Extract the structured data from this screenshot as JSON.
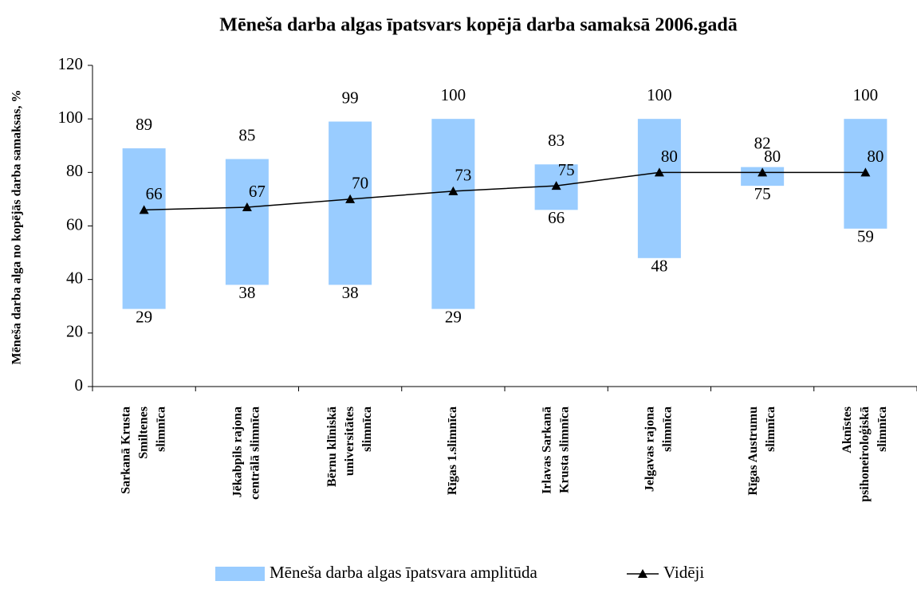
{
  "chart_data": {
    "type": "range-bar-line",
    "title": "Mēneša darba algas īpatsvars kopējā darba samaksā 2006.gadā",
    "y_label": "Mēneša darba alga no kopējās darba samaksas, %",
    "categories": [
      [
        "Sarkanā Krusta",
        "Smiltenes",
        "slimnīca"
      ],
      [
        "Jēkabpils rajona",
        "centrālā slimnīca"
      ],
      [
        "Bērnu klīniskā",
        "universitātes",
        "slimnīca"
      ],
      [
        "Rīgas 1.slimnīca"
      ],
      [
        "Irlavas Sarkanā",
        "Krusta slimnīca"
      ],
      [
        "Jelgavas rajona",
        "slimnīca"
      ],
      [
        "Rīgas Austrumu",
        "slimnīca"
      ],
      [
        "Aknīstes",
        "psihoneiroloģiskā",
        "slimnīca"
      ]
    ],
    "series": [
      {
        "name": "Mēneša darba algas īpatsvara amplitūda",
        "color": "#99ccff",
        "low": [
          29,
          38,
          38,
          29,
          66,
          48,
          75,
          59
        ],
        "high": [
          89,
          85,
          99,
          100,
          83,
          100,
          82,
          100
        ]
      },
      {
        "name": "Vidēji",
        "color": "#000000",
        "values": [
          66,
          67,
          70,
          73,
          75,
          80,
          80,
          80
        ]
      }
    ],
    "ylim": [
      0,
      120
    ],
    "yticks": [
      0,
      20,
      40,
      60,
      80,
      100,
      120
    ],
    "grid": false
  }
}
